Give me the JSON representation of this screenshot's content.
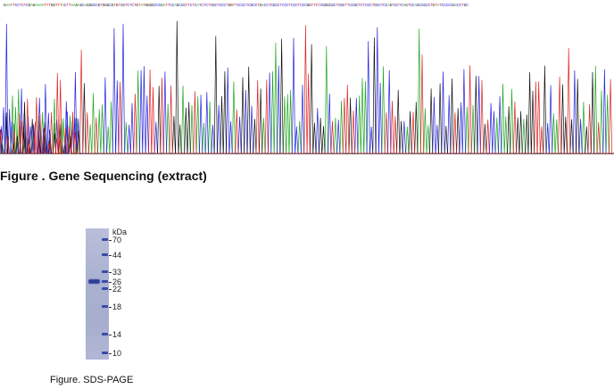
{
  "sequencing": {
    "caption": "Figure . Gene Sequencing (extract)",
    "colors": {
      "A": "#1fa51f",
      "C": "#2222dd",
      "G": "#111111",
      "T": "#dd2222"
    },
    "called_sequence_visible": "GAATTCCTCTCGAGAAAATTTGGTTTACTTAAGAGCAGGGCCGTGGGCGTGTCGTCTCTGTATGGGGCCCGATTCCAGCCGTTCTCATCTCTCGCTCCCTGGTTCCCCTCGCCTGACCTCGCCTCCCTCCCTCCCGGTTCTCGGGCGCTCGCTTCCGCTCTCCCTGCCTCCAGTCCTCAGTCCAGCCGCCTGTATCCCCCGACCTGC"
  },
  "gel": {
    "caption": "Figure. SDS-PAGE",
    "unit_label": "kDa",
    "marker_labels": [
      "70",
      "44",
      "33",
      "26",
      "22",
      "18",
      "14",
      "10"
    ]
  }
}
